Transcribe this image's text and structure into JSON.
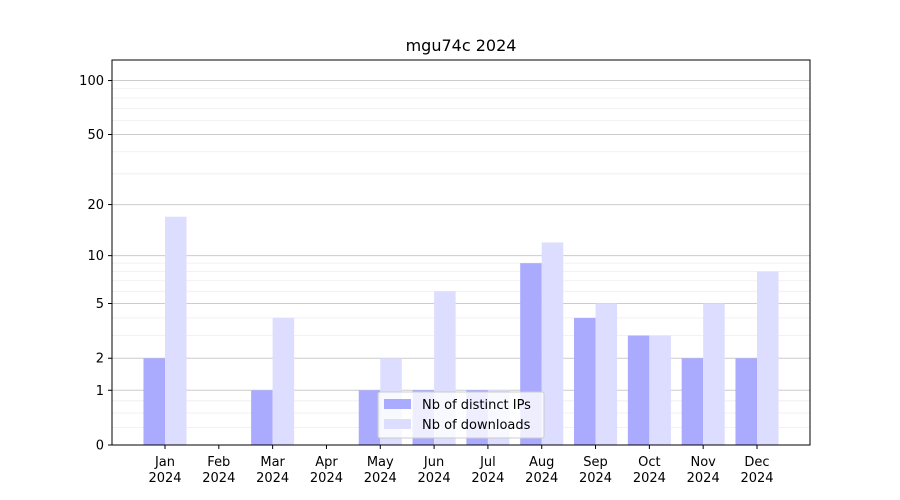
{
  "chart_data": {
    "type": "bar",
    "title": "mgu74c 2024",
    "xlabel": "",
    "ylabel": "",
    "y_scale": "symlog",
    "ylim": [
      0,
      130
    ],
    "y_ticks": [
      0,
      1,
      2,
      5,
      10,
      20,
      50,
      100
    ],
    "y_tick_labels": [
      "0",
      "1",
      "2",
      "5",
      "10",
      "20",
      "50",
      "100"
    ],
    "categories": [
      [
        "Jan",
        "2024"
      ],
      [
        "Feb",
        "2024"
      ],
      [
        "Mar",
        "2024"
      ],
      [
        "Apr",
        "2024"
      ],
      [
        "May",
        "2024"
      ],
      [
        "Jun",
        "2024"
      ],
      [
        "Jul",
        "2024"
      ],
      [
        "Aug",
        "2024"
      ],
      [
        "Sep",
        "2024"
      ],
      [
        "Oct",
        "2024"
      ],
      [
        "Nov",
        "2024"
      ],
      [
        "Dec",
        "2024"
      ]
    ],
    "series": [
      {
        "name": "Nb of distinct IPs",
        "color": "#aaaaff",
        "values": [
          2,
          0,
          1,
          0,
          1,
          1,
          1,
          9,
          4,
          3,
          2,
          2
        ]
      },
      {
        "name": "Nb of downloads",
        "color": "#ddddff",
        "values": [
          17,
          0,
          4,
          0,
          2,
          6,
          1,
          12,
          5,
          3,
          5,
          8
        ]
      }
    ],
    "grid": true,
    "legend_position": "bottom-center"
  }
}
